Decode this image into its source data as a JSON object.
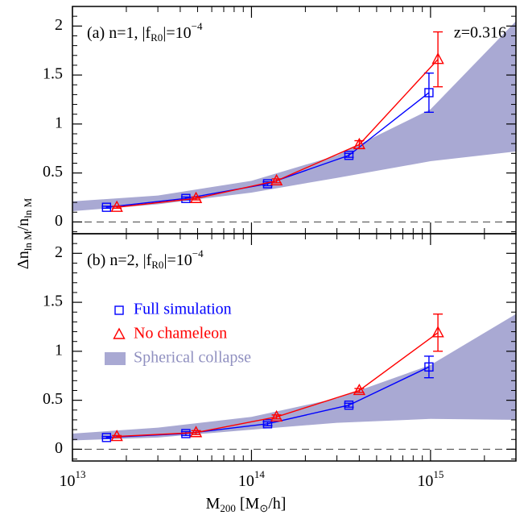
{
  "chart_data": [
    {
      "type": "line",
      "panel_label": {
        "main": "(a)  n=1,  |f",
        "sub": "R0",
        "mid": "|=10",
        "sup": "−4"
      },
      "redshift_label": "z=0.316",
      "ylabel": {
        "main": "Δn",
        "sub": "ln M",
        "mid": "/n",
        "sub2": "ln M"
      },
      "xscale": "log",
      "xlim": [
        10000000000000.0,
        3000000000000000.0
      ],
      "xticks": [
        10000000000000.0,
        100000000000000.0,
        1000000000000000.0
      ],
      "xminorticks": [
        20000000000000.0,
        30000000000000.0,
        40000000000000.0,
        50000000000000.0,
        60000000000000.0,
        70000000000000.0,
        80000000000000.0,
        90000000000000.0,
        200000000000000.0,
        300000000000000.0,
        400000000000000.0,
        500000000000000.0,
        600000000000000.0,
        700000000000000.0,
        800000000000000.0,
        900000000000000.0,
        2000000000000000.0
      ],
      "ylim": [
        -0.12,
        2.2
      ],
      "yticks": [
        0,
        0.5,
        1,
        1.5,
        2
      ],
      "yminorticks": [
        -0.1,
        0.1,
        0.2,
        0.3,
        0.4,
        0.6,
        0.7,
        0.8,
        0.9,
        1.1,
        1.2,
        1.3,
        1.4,
        1.6,
        1.7,
        1.8,
        1.9,
        2.1
      ],
      "hline": 0,
      "band": {
        "color": "#a9a9d3",
        "x": [
          10000000000000.0,
          30000000000000.0,
          100000000000000.0,
          300000000000000.0,
          1000000000000000.0,
          3000000000000000.0
        ],
        "lower": [
          0.11,
          0.18,
          0.3,
          0.45,
          0.62,
          0.72
        ],
        "upper": [
          0.21,
          0.27,
          0.42,
          0.68,
          1.15,
          2.05
        ]
      },
      "series": [
        {
          "marker": "square",
          "color": "#0000ff",
          "x": [
            15500000000000.0,
            43000000000000.0,
            123000000000000.0,
            350000000000000.0,
            980000000000000.0
          ],
          "values": [
            0.15,
            0.24,
            0.39,
            0.68,
            1.32
          ],
          "errors": [
            0.01,
            0.015,
            0.02,
            0.02,
            0.2
          ]
        },
        {
          "marker": "triangle",
          "color": "#ff0000",
          "x": [
            17700000000000.0,
            49000000000000.0,
            138000000000000.0,
            400000000000000.0,
            1100000000000000.0
          ],
          "values": [
            0.15,
            0.24,
            0.42,
            0.79,
            1.66
          ],
          "errors": [
            0.01,
            0.015,
            0.02,
            0.04,
            0.28
          ]
        }
      ]
    },
    {
      "type": "line",
      "panel_label": {
        "main": "(b)  n=2,  |f",
        "sub": "R0",
        "mid": "|=10",
        "sup": "−4"
      },
      "xlabel": {
        "main": "M",
        "sub": "200",
        "mid": "  [M",
        "sub2": "⊙",
        "end": "/h]"
      },
      "xscale": "log",
      "xlim": [
        10000000000000.0,
        3000000000000000.0
      ],
      "xticks": [
        {
          "value": 10000000000000.0,
          "label": "10",
          "exponent": "13"
        },
        {
          "value": 100000000000000.0,
          "label": "10",
          "exponent": "14"
        },
        {
          "value": 1000000000000000.0,
          "label": "10",
          "exponent": "15"
        }
      ],
      "xminorticks": [
        20000000000000.0,
        30000000000000.0,
        40000000000000.0,
        50000000000000.0,
        60000000000000.0,
        70000000000000.0,
        80000000000000.0,
        90000000000000.0,
        200000000000000.0,
        300000000000000.0,
        400000000000000.0,
        500000000000000.0,
        600000000000000.0,
        700000000000000.0,
        800000000000000.0,
        900000000000000.0,
        2000000000000000.0
      ],
      "ylim": [
        -0.12,
        2.2
      ],
      "yticks": [
        0,
        0.5,
        1,
        1.5,
        2
      ],
      "yminorticks": [
        -0.1,
        0.1,
        0.2,
        0.3,
        0.4,
        0.6,
        0.7,
        0.8,
        0.9,
        1.1,
        1.2,
        1.3,
        1.4,
        1.6,
        1.7,
        1.8,
        1.9,
        2.1
      ],
      "hline": 0,
      "legend": "center left",
      "band": {
        "name": "Spherical collapse",
        "color": "#a9a9d3",
        "x": [
          10000000000000.0,
          30000000000000.0,
          100000000000000.0,
          300000000000000.0,
          1000000000000000.0,
          3000000000000000.0
        ],
        "lower": [
          0.09,
          0.12,
          0.2,
          0.27,
          0.31,
          0.3
        ],
        "upper": [
          0.16,
          0.22,
          0.33,
          0.52,
          0.86,
          1.38
        ]
      },
      "series": [
        {
          "name": "Full simulation",
          "marker": "square",
          "color": "#0000ff",
          "x": [
            15500000000000.0,
            43000000000000.0,
            123000000000000.0,
            350000000000000.0,
            980000000000000.0
          ],
          "values": [
            0.12,
            0.16,
            0.26,
            0.45,
            0.84
          ],
          "errors": [
            0.01,
            0.02,
            0.02,
            0.02,
            0.11
          ]
        },
        {
          "name": "No chameleon",
          "marker": "triangle",
          "color": "#ff0000",
          "x": [
            17700000000000.0,
            49000000000000.0,
            138000000000000.0,
            400000000000000.0,
            1100000000000000.0
          ],
          "values": [
            0.13,
            0.17,
            0.33,
            0.6,
            1.19
          ],
          "errors": [
            0.01,
            0.02,
            0.02,
            0.02,
            0.19
          ]
        }
      ]
    }
  ]
}
